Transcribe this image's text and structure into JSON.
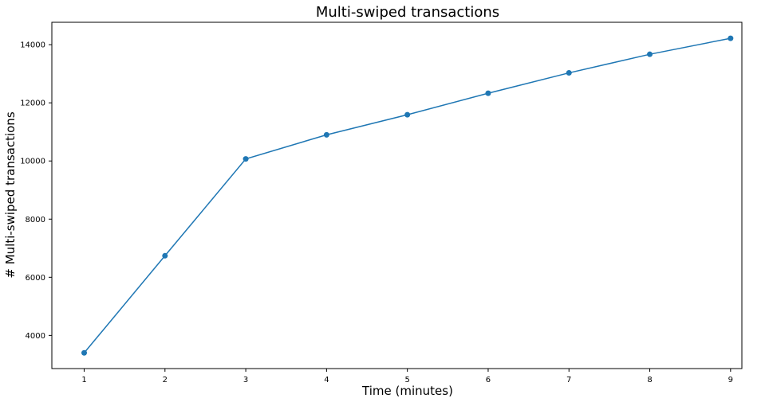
{
  "chart_data": {
    "type": "line",
    "title": "Multi-swiped transactions",
    "xlabel": "Time (minutes)",
    "ylabel": "# Multi-swiped transactions",
    "x": [
      1,
      2,
      3,
      4,
      5,
      6,
      7,
      8,
      9
    ],
    "series": [
      {
        "values": [
          3400,
          6740,
          10070,
          10900,
          11590,
          12330,
          13030,
          13670,
          14220
        ]
      }
    ],
    "xticks": [
      "1",
      "2",
      "3",
      "4",
      "5",
      "6",
      "7",
      "8",
      "9"
    ],
    "yticks": [
      "4000",
      "6000",
      "8000",
      "10000",
      "12000",
      "14000"
    ],
    "xlim": [
      0.6,
      9.14
    ],
    "ylim": [
      2860,
      14770
    ],
    "grid": false,
    "colors": {
      "line": "#1f77b4",
      "marker": "#1f77b4",
      "axis": "#000000"
    }
  }
}
